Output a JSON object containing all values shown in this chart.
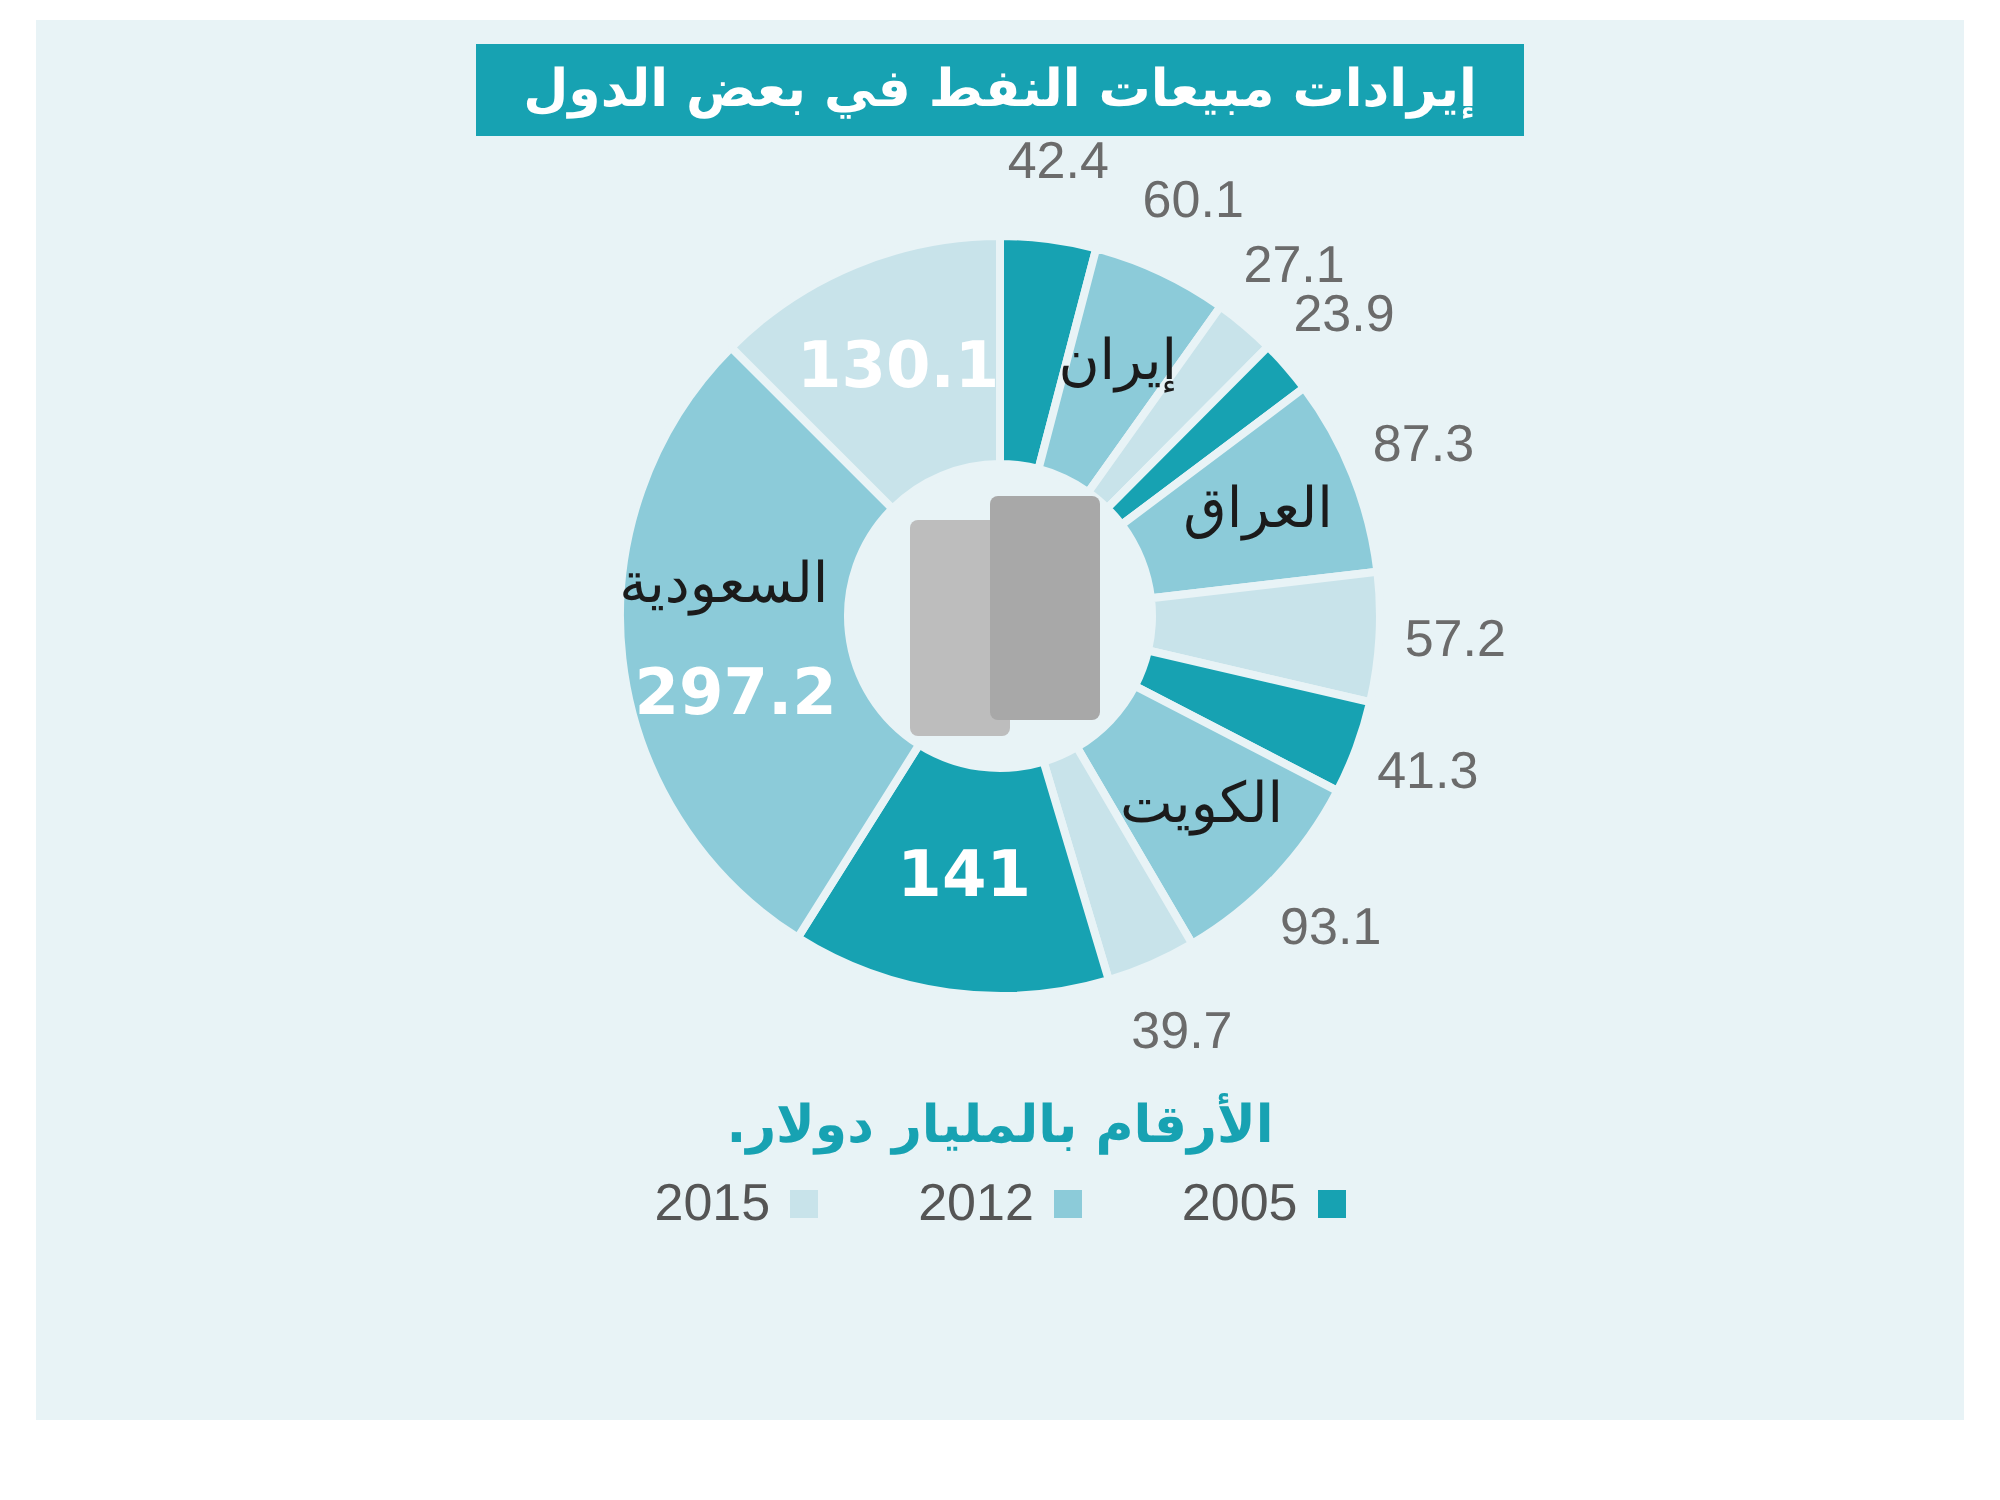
{
  "chart_data": {
    "type": "donut",
    "title": "إيرادات مبيعات النفط في بعض الدول",
    "categories": [
      null,
      "إيران",
      null,
      null,
      "العراق",
      null,
      null,
      "الكويت",
      null,
      null,
      "السعودية",
      null
    ],
    "values": [
      42.4,
      60.1,
      27.1,
      23.9,
      87.3,
      57.2,
      41.3,
      93.1,
      39.7,
      141,
      297.2,
      130.1
    ],
    "colors": [
      "#17a2b2",
      "#8ccbd9",
      "#c8e3ea",
      "#17a2b2",
      "#8ccbd9",
      "#c8e3ea",
      "#17a2b2",
      "#8ccbd9",
      "#c8e3ea",
      "#17a2b2",
      "#8ccbd9",
      "#c8e3ea"
    ],
    "annotations": [
      "2005",
      "2012",
      "2015",
      "الأرقام بالمليار دولار."
    ],
    "data_labels": true
  }
}
